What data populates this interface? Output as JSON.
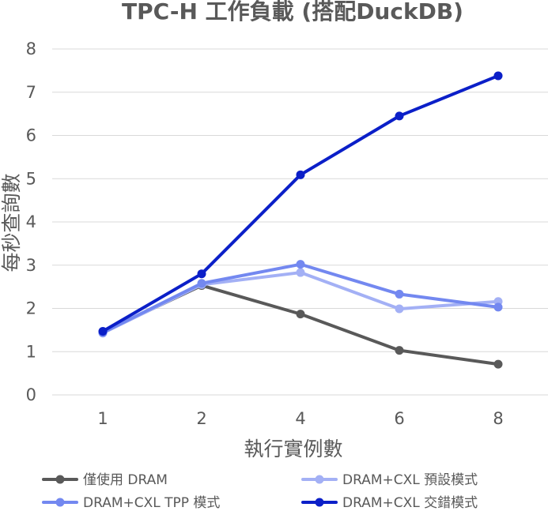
{
  "chart_data": {
    "type": "line",
    "title": "TPC-H 工作負載 (搭配DuckDB)",
    "xlabel": "執行實例數",
    "ylabel": "每秒查詢數",
    "categories": [
      "1",
      "2",
      "4",
      "6",
      "8"
    ],
    "ylim": [
      0,
      8
    ],
    "yticks": [
      0,
      1,
      2,
      3,
      4,
      5,
      6,
      7,
      8
    ],
    "grid": true,
    "legend_position": "bottom",
    "series": [
      {
        "name": "僅使用 DRAM",
        "color": "#595959",
        "values": [
          1.45,
          2.53,
          1.87,
          1.03,
          0.71
        ]
      },
      {
        "name": "DRAM+CXL 預設模式",
        "color": "#a3b0f5",
        "values": [
          1.43,
          2.55,
          2.83,
          1.99,
          2.16
        ]
      },
      {
        "name": "DRAM+CXL TPP 模式",
        "color": "#7388f0",
        "values": [
          1.44,
          2.58,
          3.02,
          2.33,
          2.03
        ]
      },
      {
        "name": "DRAM+CXL 交錯模式",
        "color": "#0b1fc8",
        "values": [
          1.47,
          2.8,
          5.09,
          6.45,
          7.38
        ]
      }
    ]
  }
}
